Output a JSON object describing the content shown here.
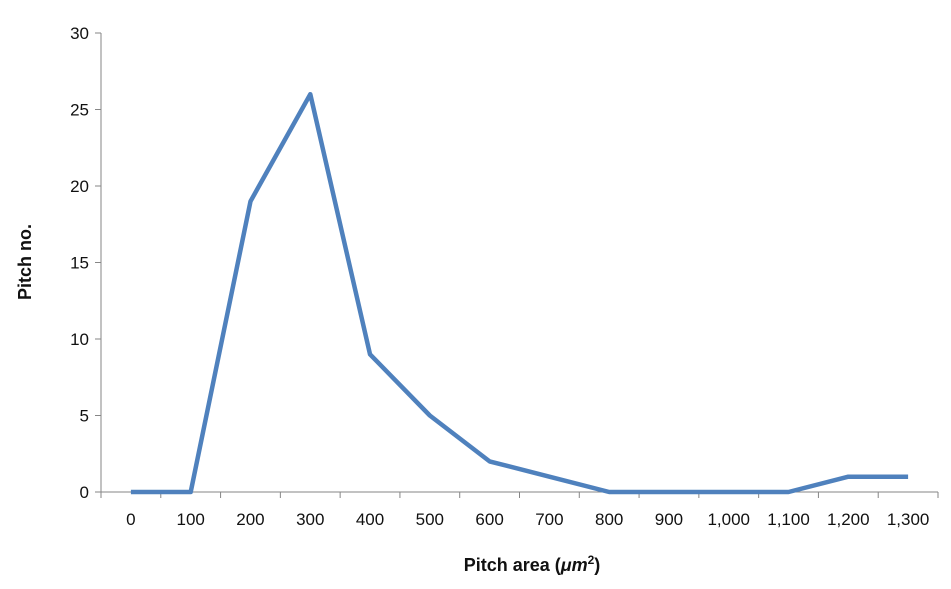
{
  "chart_data": {
    "type": "line",
    "title": "",
    "xlabel": "Pitch area (",
    "xlabel_unit": "μm",
    "xlabel_sup": "2",
    "xlabel_close": ")",
    "ylabel": "Pitch no.",
    "categories": [
      "0",
      "100",
      "200",
      "300",
      "400",
      "500",
      "600",
      "700",
      "800",
      "900",
      "1,000",
      "1,100",
      "1,200",
      "1,300"
    ],
    "series": [
      {
        "values": [
          0,
          0,
          19,
          26,
          9,
          5,
          2,
          1,
          0,
          0,
          0,
          0,
          1,
          1
        ],
        "color": "#4f81bd"
      }
    ],
    "ylim": [
      0,
      30
    ],
    "yticks": [
      0,
      5,
      10,
      15,
      20,
      25,
      30
    ],
    "grid": false,
    "legend": "none"
  }
}
